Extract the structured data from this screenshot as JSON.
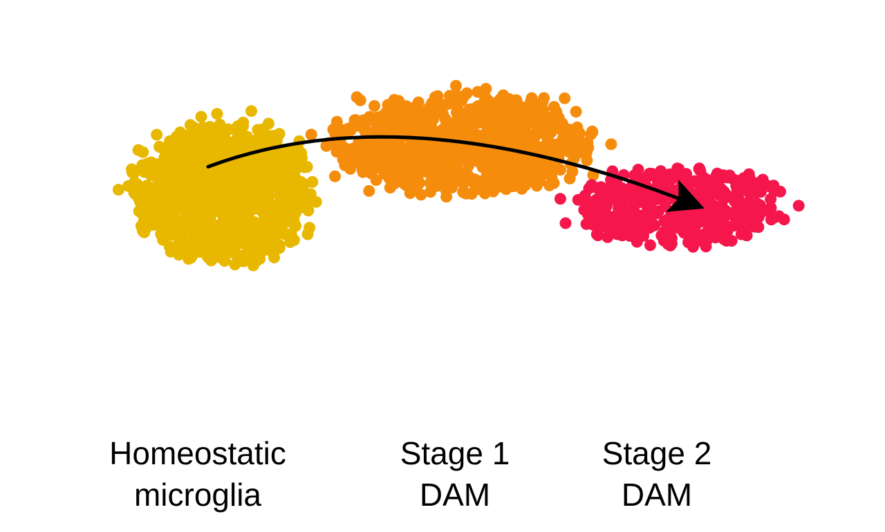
{
  "chart_data": {
    "type": "scatter",
    "title": "",
    "xlabel": "",
    "ylabel": "",
    "grid": false,
    "legend": "none",
    "xlim": [
      0,
      100
    ],
    "ylim": [
      0,
      100
    ],
    "series": [
      {
        "name": "Homeostatic microglia",
        "label_lines": [
          "Homeostatic",
          "microglia"
        ],
        "color": "#E8B800",
        "n_points": 950,
        "center": [
          21,
          55
        ],
        "spread": [
          11,
          18
        ]
      },
      {
        "name": "Stage 1 DAM",
        "label_lines": [
          "Stage 1",
          "DAM"
        ],
        "color": "#F58C0C",
        "n_points": 850,
        "center": [
          52,
          68
        ],
        "spread": [
          16,
          13
        ]
      },
      {
        "name": "Stage 2 DAM",
        "label_lines": [
          "Stage 2",
          "DAM"
        ],
        "color": "#F5174C",
        "n_points": 420,
        "center": [
          80,
          51
        ],
        "spread": [
          13,
          10
        ]
      }
    ],
    "annotations": [
      {
        "type": "arrow",
        "description": "trajectory",
        "path_data_units": [
          [
            19,
            62
          ],
          [
            45,
            71
          ],
          [
            82,
            52
          ]
        ],
        "color": "#000000"
      }
    ]
  }
}
